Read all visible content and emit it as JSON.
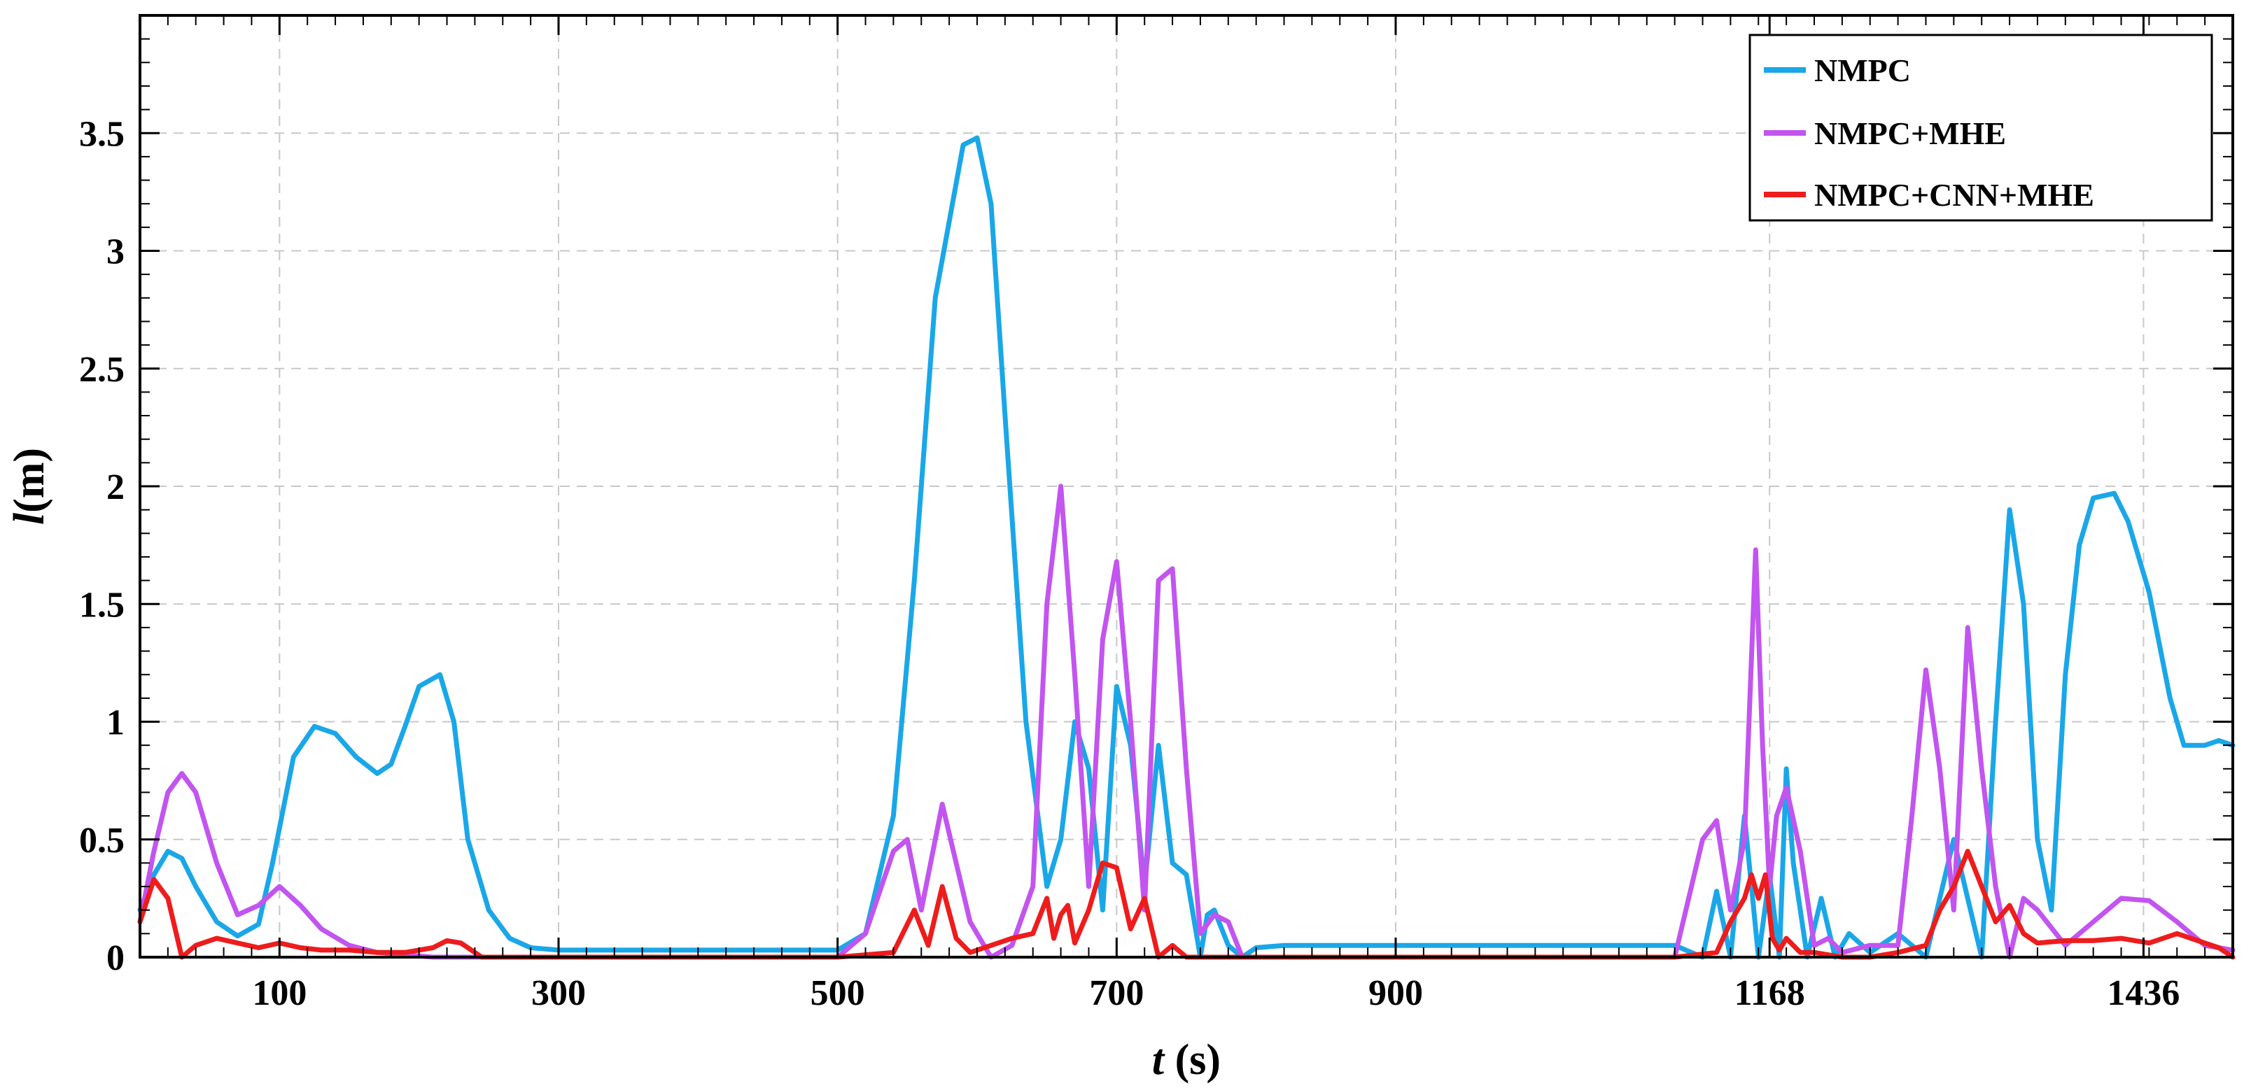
{
  "chart_data": {
    "type": "line",
    "xlabel_var": "t",
    "xlabel_unit": " (s)",
    "ylabel_var": "l",
    "ylabel_unit": "(m)",
    "xlim": [
      0,
      1500
    ],
    "ylim": [
      0,
      4
    ],
    "xticks": [
      100,
      300,
      500,
      700,
      900,
      1168,
      1436
    ],
    "xtick_labels": [
      "100",
      "300",
      "500",
      "700",
      "900",
      "1168",
      "1436"
    ],
    "yticks": [
      0,
      0.5,
      1,
      1.5,
      2,
      2.5,
      3,
      3.5
    ],
    "ytick_labels": [
      "0",
      "0.5",
      "1",
      "1.5",
      "2",
      "2.5",
      "3",
      "3.5"
    ],
    "grid": true,
    "legend_position": "top-right",
    "series": [
      {
        "name": "NMPC",
        "color": "#1AA7E8",
        "x": [
          0,
          10,
          20,
          30,
          40,
          55,
          70,
          85,
          95,
          110,
          125,
          140,
          155,
          170,
          180,
          190,
          200,
          215,
          225,
          235,
          250,
          265,
          280,
          300,
          350,
          400,
          450,
          500,
          520,
          540,
          555,
          570,
          590,
          600,
          610,
          620,
          635,
          650,
          660,
          670,
          680,
          690,
          700,
          710,
          720,
          730,
          740,
          750,
          760,
          765,
          770,
          780,
          790,
          800,
          820,
          850,
          900,
          1000,
          1100,
          1120,
          1130,
          1140,
          1150,
          1160,
          1168,
          1175,
          1180,
          1185,
          1195,
          1205,
          1215,
          1225,
          1240,
          1260,
          1280,
          1300,
          1320,
          1330,
          1340,
          1350,
          1360,
          1370,
          1380,
          1390,
          1400,
          1415,
          1425,
          1440,
          1455,
          1465,
          1480,
          1490,
          1500
        ],
        "y": [
          0.2,
          0.35,
          0.45,
          0.42,
          0.3,
          0.15,
          0.09,
          0.14,
          0.4,
          0.85,
          0.98,
          0.95,
          0.85,
          0.78,
          0.82,
          0.98,
          1.15,
          1.2,
          1.0,
          0.5,
          0.2,
          0.08,
          0.04,
          0.03,
          0.03,
          0.03,
          0.03,
          0.03,
          0.1,
          0.6,
          1.6,
          2.8,
          3.45,
          3.48,
          3.2,
          2.3,
          1.0,
          0.3,
          0.5,
          1.0,
          0.8,
          0.2,
          1.15,
          0.9,
          0.3,
          0.9,
          0.4,
          0.35,
          0.0,
          0.18,
          0.2,
          0.05,
          0.0,
          0.04,
          0.05,
          0.05,
          0.05,
          0.05,
          0.05,
          0.0,
          0.28,
          0.0,
          0.6,
          0.0,
          0.35,
          0.0,
          0.8,
          0.4,
          0.0,
          0.25,
          0.0,
          0.1,
          0.02,
          0.1,
          0.0,
          0.5,
          0.0,
          1.0,
          1.9,
          1.5,
          0.5,
          0.2,
          1.2,
          1.75,
          1.95,
          1.97,
          1.85,
          1.55,
          1.1,
          0.9,
          0.9,
          0.92,
          0.9
        ]
      },
      {
        "name": "NMPC+MHE",
        "color": "#C254F0",
        "x": [
          0,
          10,
          20,
          30,
          40,
          55,
          70,
          85,
          100,
          115,
          130,
          150,
          170,
          190,
          210,
          230,
          260,
          300,
          500,
          520,
          540,
          550,
          560,
          575,
          585,
          595,
          610,
          625,
          640,
          650,
          660,
          670,
          680,
          690,
          700,
          710,
          720,
          730,
          740,
          750,
          760,
          770,
          780,
          790,
          800,
          820,
          850,
          900,
          1000,
          1100,
          1120,
          1130,
          1140,
          1150,
          1158,
          1163,
          1168,
          1173,
          1180,
          1190,
          1200,
          1210,
          1220,
          1240,
          1260,
          1270,
          1280,
          1290,
          1300,
          1310,
          1320,
          1330,
          1340,
          1350,
          1360,
          1380,
          1400,
          1420,
          1440,
          1460,
          1480,
          1500
        ],
        "y": [
          0.15,
          0.45,
          0.7,
          0.78,
          0.7,
          0.4,
          0.18,
          0.22,
          0.3,
          0.22,
          0.12,
          0.05,
          0.02,
          0.01,
          0.0,
          0.0,
          0.0,
          0.0,
          0.0,
          0.1,
          0.45,
          0.5,
          0.2,
          0.65,
          0.4,
          0.15,
          0.0,
          0.05,
          0.3,
          1.5,
          2.0,
          1.2,
          0.3,
          1.35,
          1.68,
          1.0,
          0.2,
          1.6,
          1.65,
          0.8,
          0.1,
          0.18,
          0.15,
          0.0,
          0.0,
          0.0,
          0.0,
          0.0,
          0.0,
          0.0,
          0.5,
          0.58,
          0.2,
          0.5,
          1.73,
          0.9,
          0.3,
          0.6,
          0.72,
          0.45,
          0.05,
          0.08,
          0.02,
          0.05,
          0.05,
          0.6,
          1.22,
          0.8,
          0.2,
          1.4,
          0.8,
          0.3,
          0.0,
          0.25,
          0.2,
          0.05,
          0.15,
          0.25,
          0.24,
          0.15,
          0.05,
          0.03
        ]
      },
      {
        "name": "NMPC+CNN+MHE",
        "color": "#EE1C1C",
        "x": [
          0,
          10,
          20,
          30,
          40,
          55,
          70,
          85,
          100,
          115,
          130,
          150,
          170,
          190,
          210,
          220,
          230,
          245,
          260,
          300,
          500,
          540,
          555,
          565,
          575,
          585,
          595,
          610,
          625,
          640,
          650,
          655,
          660,
          665,
          670,
          680,
          690,
          700,
          710,
          720,
          730,
          740,
          750,
          760,
          780,
          800,
          900,
          1000,
          1100,
          1130,
          1140,
          1150,
          1155,
          1160,
          1165,
          1170,
          1175,
          1180,
          1190,
          1200,
          1220,
          1240,
          1260,
          1280,
          1290,
          1300,
          1310,
          1320,
          1330,
          1340,
          1350,
          1360,
          1380,
          1400,
          1420,
          1440,
          1460,
          1480,
          1490,
          1500
        ],
        "y": [
          0.15,
          0.33,
          0.25,
          0.0,
          0.05,
          0.08,
          0.06,
          0.04,
          0.06,
          0.04,
          0.03,
          0.03,
          0.02,
          0.02,
          0.04,
          0.07,
          0.06,
          0.0,
          0.0,
          0.0,
          0.0,
          0.02,
          0.2,
          0.05,
          0.3,
          0.08,
          0.02,
          0.05,
          0.08,
          0.1,
          0.25,
          0.08,
          0.18,
          0.22,
          0.06,
          0.2,
          0.4,
          0.38,
          0.12,
          0.25,
          0.0,
          0.05,
          0.0,
          0.0,
          0.0,
          0.0,
          0.0,
          0.0,
          0.0,
          0.02,
          0.15,
          0.25,
          0.35,
          0.25,
          0.35,
          0.08,
          0.03,
          0.08,
          0.02,
          0.02,
          0.0,
          0.0,
          0.02,
          0.05,
          0.2,
          0.3,
          0.45,
          0.3,
          0.15,
          0.22,
          0.1,
          0.06,
          0.07,
          0.07,
          0.08,
          0.06,
          0.1,
          0.06,
          0.04,
          0.0
        ]
      }
    ]
  }
}
